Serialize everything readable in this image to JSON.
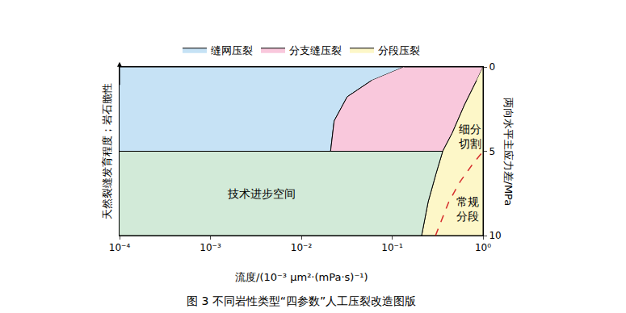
{
  "chart_data": {
    "type": "area",
    "title": "图 3 不同岩性类型“四参数”人工压裂改造图版",
    "xlabel": "流度/(10⁻³ μm²·(mPa·s)⁻¹)",
    "ylabel": "两向水平主应力差/MPa",
    "ylabel_left": "天然裂缝发育程度；岩石脆性",
    "log": "x",
    "xlim": [
      0.0001,
      1
    ],
    "xticks": [
      {
        "value": 0.0001,
        "label": "10⁻⁴"
      },
      {
        "value": 0.001,
        "label": "10⁻³"
      },
      {
        "value": 0.01,
        "label": "10⁻²"
      },
      {
        "value": 0.1,
        "label": "10⁻¹"
      },
      {
        "value": 1,
        "label": "10⁰"
      }
    ],
    "ylim": [
      10,
      0
    ],
    "yticks": [
      0,
      5,
      10
    ],
    "legend": "top",
    "series": [
      {
        "name": "缝网压裂",
        "type": "area",
        "color": "#c6e2f5",
        "x": [
          0.0001,
          0.135,
          0.059,
          0.032,
          0.023,
          0.021,
          0.0001
        ],
        "y": [
          0,
          0,
          0.81,
          1.77,
          3.2,
          5,
          5
        ]
      },
      {
        "name": "分支缝压裂",
        "type": "area",
        "color": "#f9c8dc",
        "x": [
          0.135,
          1,
          0.85,
          0.625,
          0.46,
          0.36,
          0.021,
          0.023,
          0.032,
          0.059
        ],
        "y": [
          0,
          0,
          0.8,
          2.25,
          3.9,
          5,
          5,
          3.2,
          1.77,
          0.81
        ]
      },
      {
        "name": "分段压裂",
        "type": "area",
        "color": "#fdf7c8",
        "x": [
          1,
          1,
          0.211,
          0.249,
          0.305,
          0.36,
          0.46,
          0.625,
          0.85
        ],
        "y": [
          0,
          10,
          10,
          8,
          6.3,
          5,
          3.9,
          2.25,
          0.8
        ]
      },
      {
        "type": "area",
        "color": "#d2ead8",
        "x": [
          0.0001,
          0.36,
          0.305,
          0.249,
          0.211,
          0.0001
        ],
        "y": [
          5,
          5,
          6.3,
          8,
          10,
          10
        ]
      },
      {
        "type": "line",
        "color": "#d62d2d",
        "line_style": "dash",
        "x": [
          0.3,
          0.42,
          0.56,
          0.76,
          1
        ],
        "y": [
          10,
          8,
          6.8,
          5.8,
          5
        ]
      }
    ],
    "annotations": [
      {
        "text": [
          "技术进步空间"
        ],
        "x": 0.0036,
        "y": 7.5
      },
      {
        "text": [
          "细分",
          "切割"
        ],
        "x": 0.72,
        "y": 4.1
      },
      {
        "text": [
          "常规",
          "分段"
        ],
        "x": 0.68,
        "y": 8.4
      }
    ]
  }
}
